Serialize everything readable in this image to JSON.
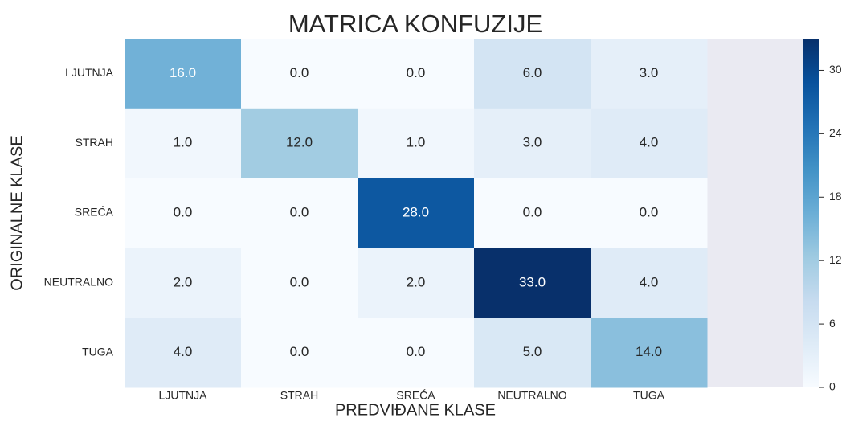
{
  "chart_data": {
    "type": "heatmap",
    "title": "MATRICA KONFUZIJE",
    "x_label": "PREDVIĐANE KLASE",
    "y_label": "ORIGINALNE KLASE",
    "categories": [
      "LJUTNJA",
      "STRAH",
      "SREĆA",
      "NEUTRALNO",
      "TUGA"
    ],
    "y_categories": [
      "LJUTNJA",
      "STRAH",
      "SREĆA",
      "NEUTRALNO",
      "TUGA"
    ],
    "values": [
      [
        16,
        0,
        0,
        6,
        3
      ],
      [
        1,
        12,
        1,
        3,
        4
      ],
      [
        0,
        0,
        28,
        0,
        0
      ],
      [
        2,
        0,
        2,
        33,
        4
      ],
      [
        4,
        0,
        0,
        5,
        14
      ]
    ],
    "value_labels": [
      [
        "16.0",
        "0.0",
        "0.0",
        "6.0",
        "3.0"
      ],
      [
        "1.0",
        "12.0",
        "1.0",
        "3.0",
        "4.0"
      ],
      [
        "0.0",
        "0.0",
        "28.0",
        "0.0",
        "0.0"
      ],
      [
        "2.0",
        "0.0",
        "2.0",
        "33.0",
        "4.0"
      ],
      [
        "4.0",
        "0.0",
        "0.0",
        "5.0",
        "14.0"
      ]
    ],
    "colorscale": [
      "#f7fbff",
      "#deebf7",
      "#c6dbef",
      "#9ecae1",
      "#6baed6",
      "#4292c6",
      "#2171b5",
      "#08519c",
      "#08306b"
    ],
    "clim": [
      0,
      33
    ],
    "cticks": [
      0,
      6,
      12,
      18,
      24,
      30
    ]
  }
}
